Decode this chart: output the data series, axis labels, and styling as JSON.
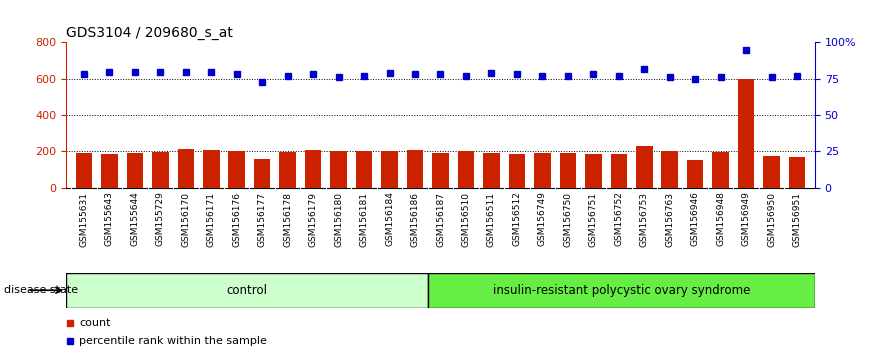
{
  "title": "GDS3104 / 209680_s_at",
  "samples": [
    "GSM155631",
    "GSM155643",
    "GSM155644",
    "GSM155729",
    "GSM156170",
    "GSM156171",
    "GSM156176",
    "GSM156177",
    "GSM156178",
    "GSM156179",
    "GSM156180",
    "GSM156181",
    "GSM156184",
    "GSM156186",
    "GSM156187",
    "GSM156510",
    "GSM156511",
    "GSM156512",
    "GSM156749",
    "GSM156750",
    "GSM156751",
    "GSM156752",
    "GSM156753",
    "GSM156763",
    "GSM156946",
    "GSM156948",
    "GSM156949",
    "GSM156950",
    "GSM156951"
  ],
  "counts": [
    190,
    185,
    190,
    198,
    215,
    205,
    200,
    155,
    195,
    205,
    200,
    200,
    200,
    205,
    190,
    200,
    190,
    185,
    190,
    190,
    185,
    185,
    230,
    200,
    150,
    195,
    600,
    175,
    170
  ],
  "percentile_ranks": [
    78,
    80,
    80,
    80,
    80,
    80,
    78,
    73,
    77,
    78,
    76,
    77,
    79,
    78,
    78,
    77,
    79,
    78,
    77,
    77,
    78,
    77,
    82,
    76,
    75,
    76,
    95,
    76,
    77
  ],
  "control_count": 14,
  "disease_label": "insulin-resistant polycystic ovary syndrome",
  "control_label": "control",
  "disease_state_label": "disease state",
  "bar_color": "#cc2200",
  "dot_color": "#0000cc",
  "left_axis_color": "#cc2200",
  "right_axis_color": "#0000cc",
  "ylim_left": [
    0,
    800
  ],
  "ylim_right": [
    0,
    100
  ],
  "yticks_left": [
    0,
    200,
    400,
    600,
    800
  ],
  "yticks_right": [
    0,
    25,
    50,
    75,
    100
  ],
  "grid_dotted_values": [
    200,
    400,
    600
  ],
  "control_bg": "#ccffcc",
  "disease_bg": "#66ee44",
  "tick_bg_color": "#c8c8c8",
  "title_fontsize": 10,
  "tick_label_fontsize": 6.5,
  "legend_fontsize": 8
}
